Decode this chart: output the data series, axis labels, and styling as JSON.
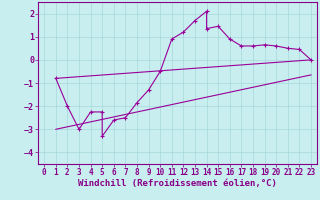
{
  "xlabel": "Windchill (Refroidissement éolien,°C)",
  "bg_color": "#c8eef0",
  "line_color": "#990099",
  "marker": "+",
  "xlim": [
    -0.5,
    23.5
  ],
  "ylim": [
    -4.5,
    2.5
  ],
  "xticks": [
    0,
    1,
    2,
    3,
    4,
    5,
    6,
    7,
    8,
    9,
    10,
    11,
    12,
    13,
    14,
    15,
    16,
    17,
    18,
    19,
    20,
    21,
    22,
    23
  ],
  "yticks": [
    -4,
    -3,
    -2,
    -1,
    0,
    1,
    2
  ],
  "series1_x": [
    1,
    2,
    3,
    4,
    5,
    5,
    6,
    7,
    8,
    9,
    10,
    11,
    12,
    13,
    14,
    14,
    15,
    16,
    17,
    18,
    19,
    20,
    21,
    22,
    23
  ],
  "series1_y": [
    -0.8,
    -2.0,
    -3.0,
    -2.25,
    -2.25,
    -3.3,
    -2.6,
    -2.5,
    -1.85,
    -1.3,
    -0.5,
    0.9,
    1.2,
    1.7,
    2.1,
    1.35,
    1.45,
    0.9,
    0.6,
    0.6,
    0.65,
    0.6,
    0.5,
    0.45,
    0.0
  ],
  "series2_x": [
    1,
    23
  ],
  "series2_y": [
    -0.8,
    0.0
  ],
  "series3_x": [
    1,
    23
  ],
  "series3_y": [
    -3.0,
    -0.65
  ],
  "grid_color": "#a8d8da",
  "font_color": "#880088",
  "tick_fontsize": 5.5,
  "xlabel_fontsize": 6.5
}
